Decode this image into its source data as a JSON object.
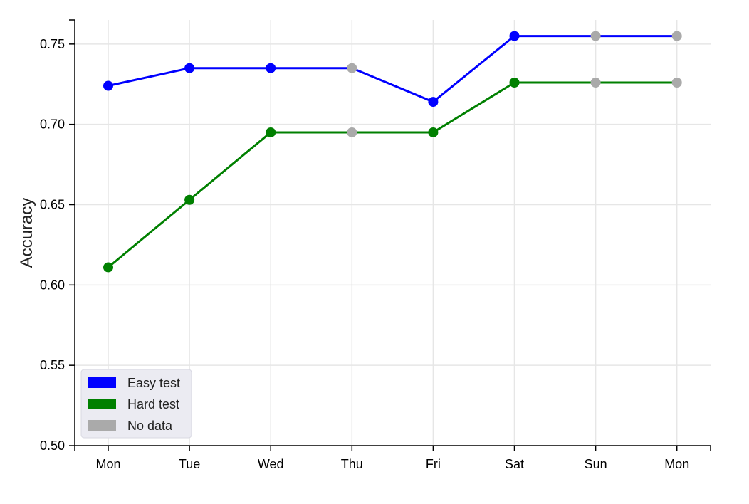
{
  "chart_data": {
    "type": "line",
    "title": "",
    "xlabel": "",
    "ylabel": "Accuracy",
    "categories": [
      "Mon",
      "Tue",
      "Wed",
      "Thu",
      "Fri",
      "Sat",
      "Sun",
      "Mon"
    ],
    "ylim": [
      0.5,
      0.765
    ],
    "yticks": [
      "0.50",
      "0.55",
      "0.60",
      "0.65",
      "0.70",
      "0.75"
    ],
    "grid": true,
    "legend_position": "bottom-left",
    "series": [
      {
        "name": "Easy test",
        "color": "#0000ff",
        "values": [
          0.724,
          0.735,
          0.735,
          0.735,
          0.714,
          0.755,
          0.755,
          0.755
        ],
        "has_data": [
          true,
          true,
          true,
          false,
          true,
          true,
          false,
          false
        ]
      },
      {
        "name": "Hard test",
        "color": "#008000",
        "values": [
          0.611,
          0.653,
          0.695,
          0.695,
          0.695,
          0.726,
          0.726,
          0.726
        ],
        "has_data": [
          true,
          true,
          true,
          false,
          true,
          true,
          false,
          false
        ]
      }
    ],
    "legend": [
      {
        "label": "Easy test",
        "color": "#0000ff"
      },
      {
        "label": "Hard test",
        "color": "#008000"
      },
      {
        "label": "No data",
        "color": "#aaaaaa"
      }
    ]
  }
}
